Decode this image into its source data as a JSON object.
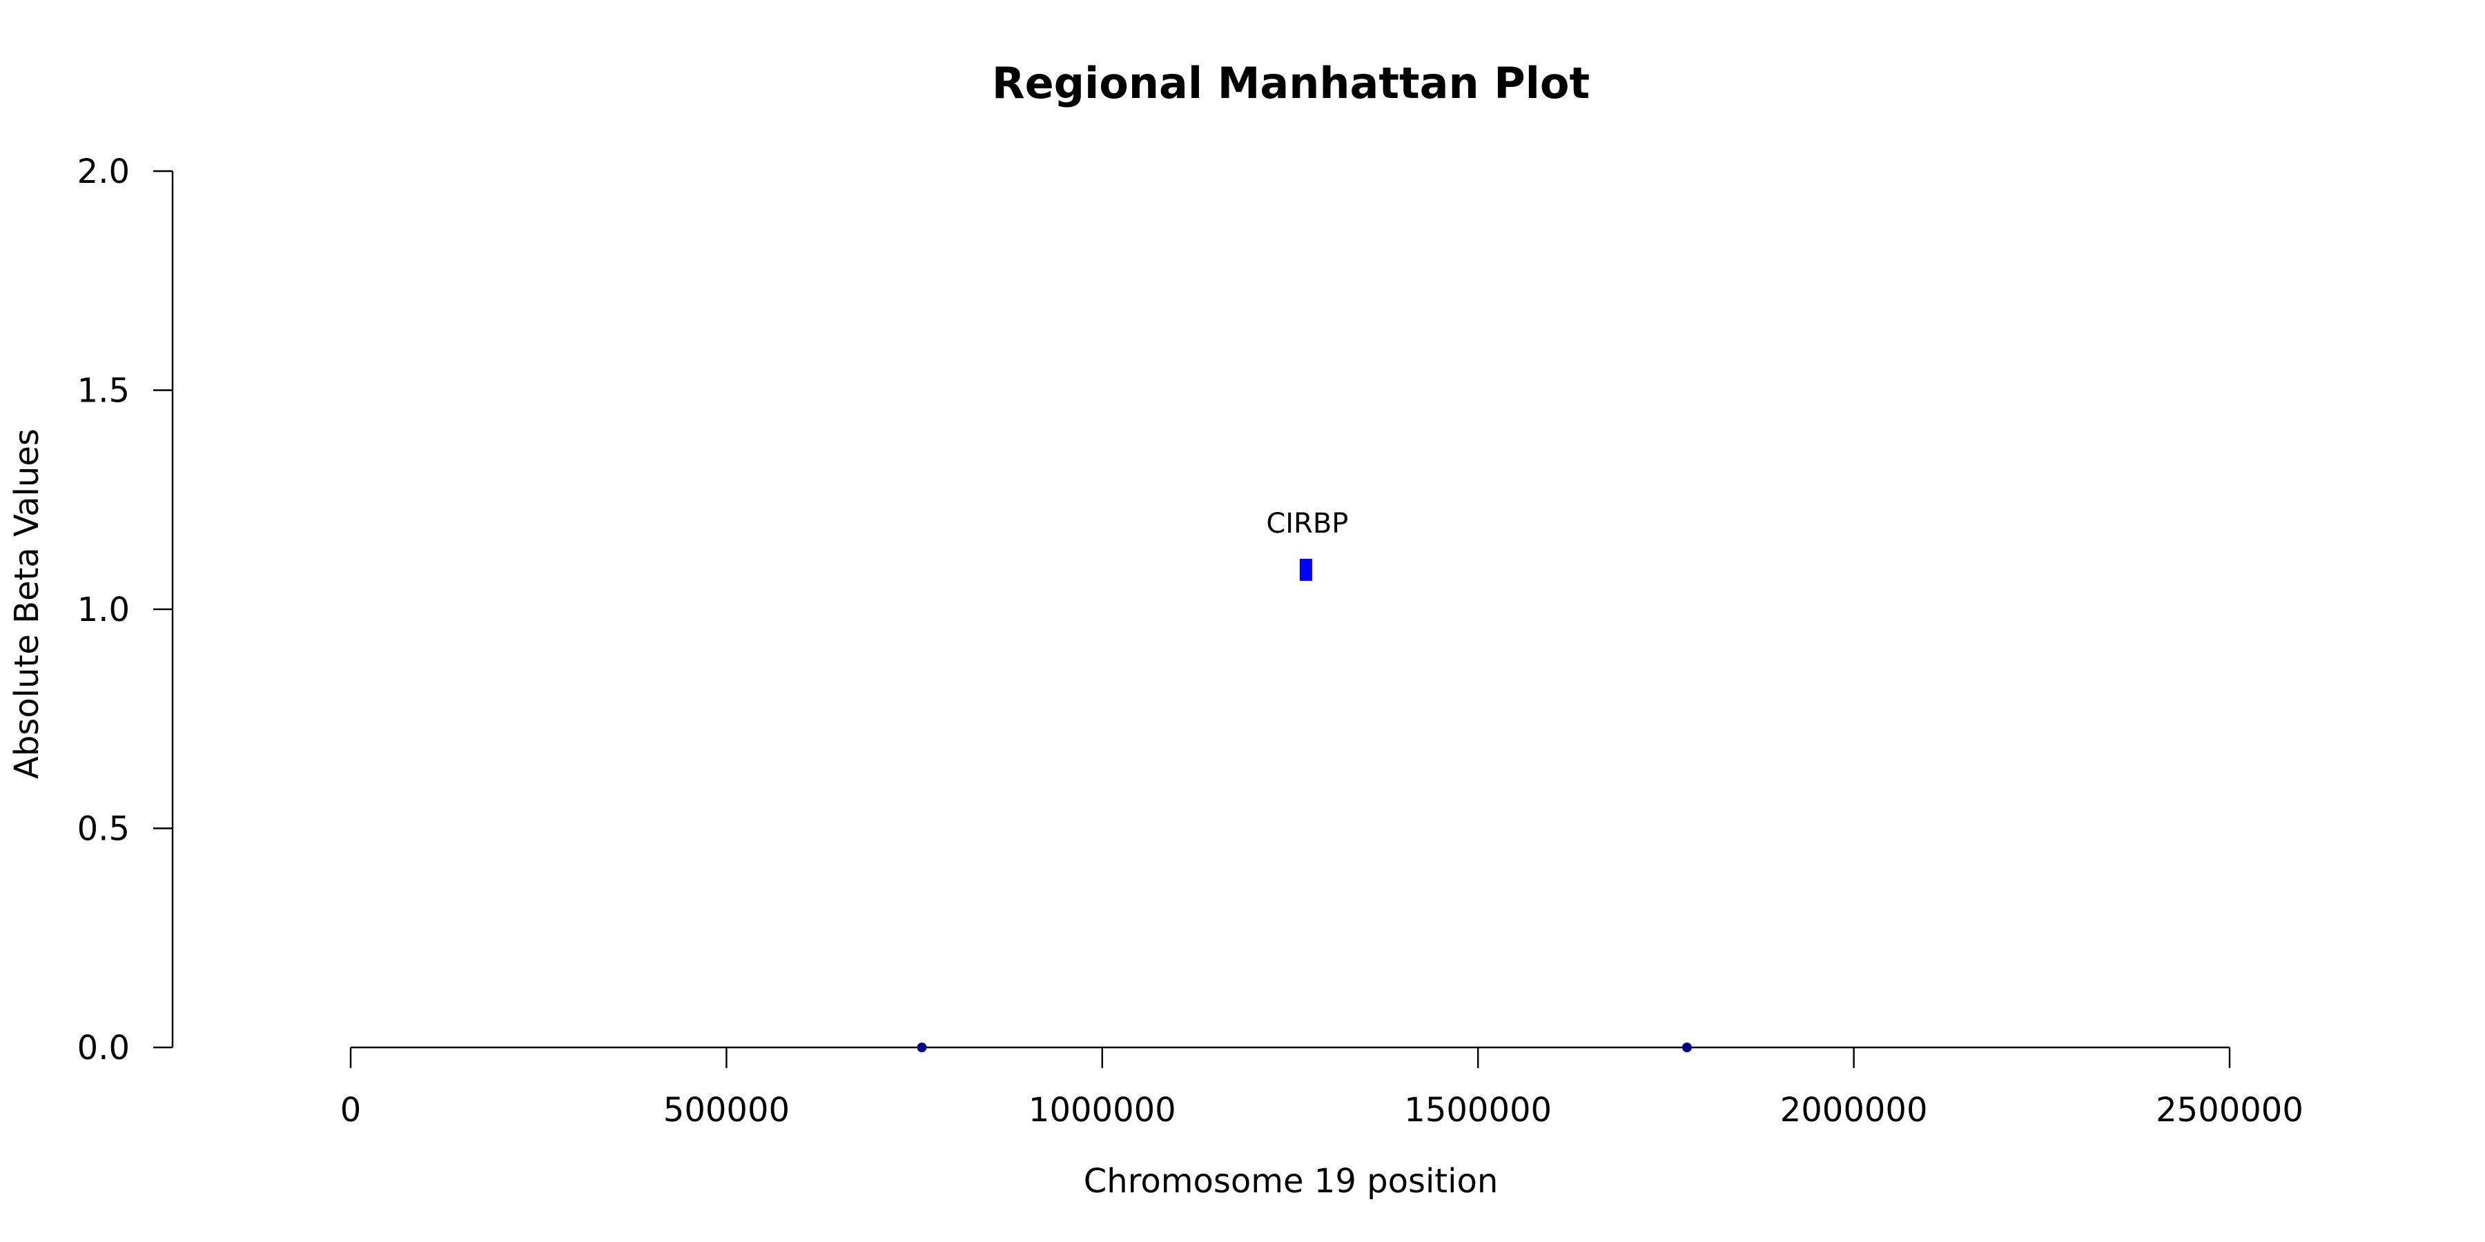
{
  "chart_data": {
    "type": "scatter",
    "title": "Regional Manhattan Plot",
    "xlabel": "Chromosome 19 position",
    "ylabel": "Absolute Beta Values",
    "xlim": [
      0,
      2500000
    ],
    "ylim": [
      0,
      2.0
    ],
    "xticks": [
      0,
      500000,
      1000000,
      1500000,
      2000000,
      2500000
    ],
    "xtick_labels": [
      "0",
      "500000",
      "1000000",
      "1500000",
      "2000000",
      "2500000"
    ],
    "yticks": [
      0.0,
      0.5,
      1.0,
      1.5,
      2.0
    ],
    "ytick_labels": [
      "0.0",
      "0.5",
      "1.0",
      "1.5",
      "2.0"
    ],
    "grid": false,
    "points": [
      {
        "x": 760000,
        "y": 0.0,
        "shape": "circle",
        "color": "#00008b"
      },
      {
        "x": 1778000,
        "y": 0.0,
        "shape": "circle",
        "color": "#00008b"
      },
      {
        "x": 1271000,
        "y": 1.09,
        "shape": "rect",
        "color": "#0000ff",
        "label": "CIRBP"
      }
    ]
  }
}
